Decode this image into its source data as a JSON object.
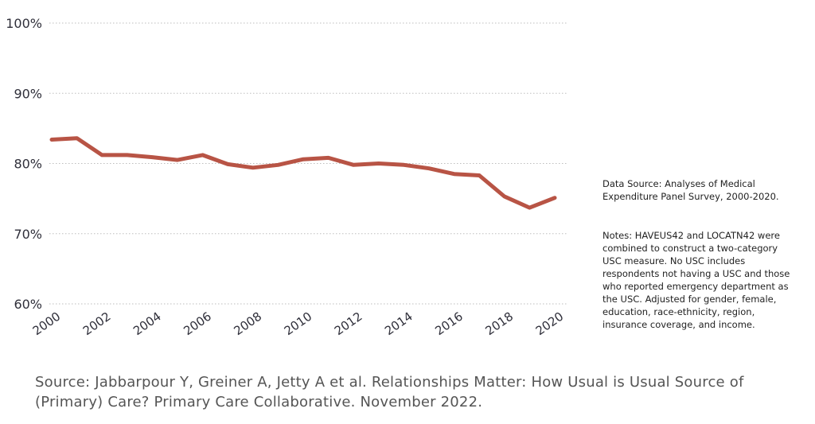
{
  "chart_data": {
    "type": "line",
    "x": [
      2000,
      2001,
      2002,
      2003,
      2004,
      2005,
      2006,
      2007,
      2008,
      2009,
      2010,
      2011,
      2012,
      2013,
      2014,
      2015,
      2016,
      2017,
      2018,
      2019,
      2020
    ],
    "series": [
      {
        "values": [
          83.4,
          83.6,
          81.2,
          81.2,
          80.9,
          80.5,
          81.2,
          79.9,
          79.4,
          79.8,
          80.6,
          80.8,
          79.8,
          80.0,
          79.8,
          79.3,
          78.5,
          78.3,
          75.3,
          73.7,
          75.1
        ]
      }
    ],
    "yticks": [
      "100%",
      "90%",
      "80%",
      "70%",
      "60%"
    ],
    "xticks": [
      "2000",
      "2002",
      "2004",
      "2006",
      "2008",
      "2010",
      "2012",
      "2014",
      "2016",
      "2018",
      "2020"
    ],
    "ylim": [
      60,
      100
    ],
    "xlim": [
      2000,
      2020
    ],
    "grid": "horizontal dotted",
    "line_color": "#b85445"
  },
  "data_source": "Data Source: Analyses of Medical Expenditure Panel Survey, 2000-2020.",
  "notes": "Notes: HAVEUS42 and LOCATN42 were combined to construct a two-category USC measure. No USC includes respondents not having a USC and those who reported emergency department as the USC. Adjusted for gender, female, education, race-ethnicity, region, insurance coverage, and income.",
  "source": "Source: Jabbarpour Y, Greiner A, Jetty A et al. Relationships Matter: How Usual is Usual Source of (Primary) Care? Primary Care Collaborative. November 2022."
}
